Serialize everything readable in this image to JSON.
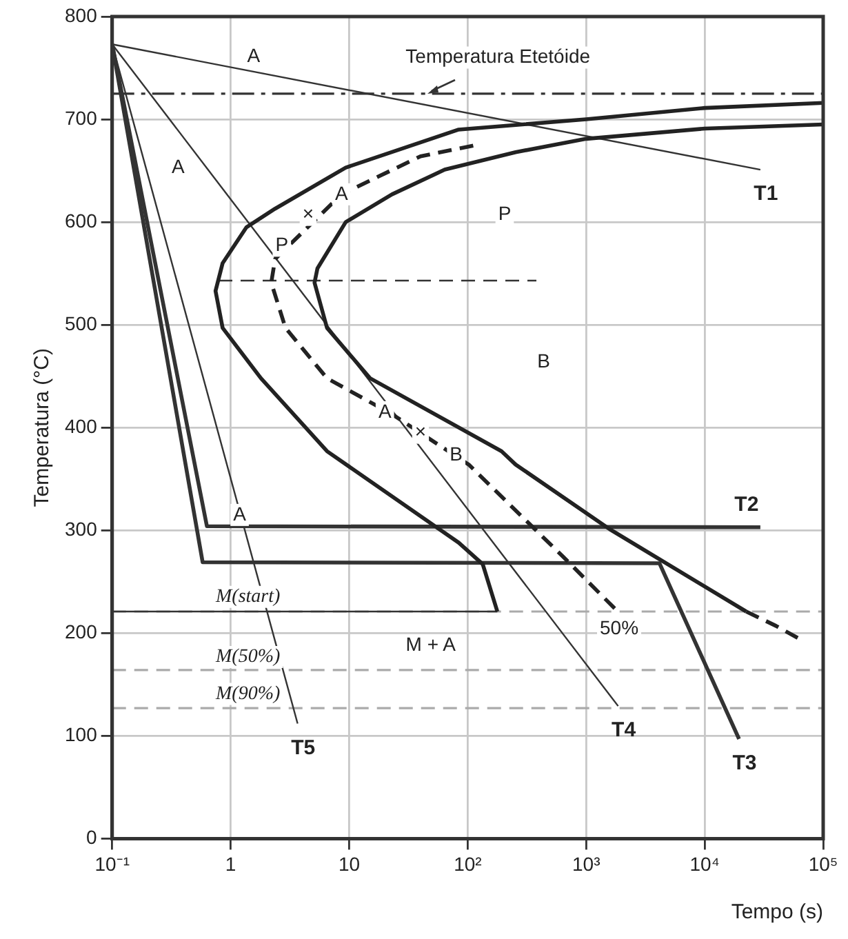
{
  "chart_data": {
    "type": "line",
    "xlabel": "Tempo (s)",
    "ylabel": "Temperatura (°C)",
    "log": "x",
    "xlim": [
      0.1,
      100000
    ],
    "ylim": [
      0,
      800
    ],
    "xticks": [
      {
        "value": 0.1,
        "label": "10⁻¹"
      },
      1,
      10,
      {
        "value": 100,
        "label": "10²"
      },
      {
        "value": 1000,
        "label": "10³"
      },
      {
        "value": 10000,
        "label": "10⁴"
      },
      {
        "value": 100000,
        "label": "10⁵"
      }
    ],
    "yticks": [
      0,
      100,
      200,
      300,
      400,
      500,
      600,
      700,
      800
    ],
    "grid": true,
    "legend": false,
    "marker": "none",
    "series": [
      {
        "color": "#222222",
        "line_style": "solid",
        "x": [
          178,
          134,
          84,
          6.5,
          1.8,
          0.855,
          0.745,
          0.855,
          1.36,
          2.37,
          9.35,
          84,
          1000,
          10000,
          100000
        ],
        "values": [
          221,
          267,
          288,
          377,
          448,
          497,
          533,
          560,
          595,
          613,
          653,
          690,
          700,
          711,
          716
        ]
      },
      {
        "color": "#222222",
        "line_style": "solid",
        "x": [
          22400,
          1585,
          254,
          193,
          15,
          6.5,
          5.1,
          5.4,
          9.35,
          23,
          64,
          254,
          1000,
          10000,
          100000
        ],
        "values": [
          221,
          301,
          364,
          377,
          448,
          497,
          541,
          555,
          600,
          627,
          651,
          668,
          681,
          691,
          695
        ]
      },
      {
        "color": "#222222",
        "line_style": "dashed",
        "x": [
          22400,
          40000,
          61600
        ],
        "values": [
          221,
          207,
          195
        ]
      },
      {
        "color": "#222222",
        "line_style": "dashed",
        "x": [
          1740,
          630,
          102,
          23,
          6.5,
          2.9,
          2.2,
          2.37,
          8.6,
          40,
          118
        ],
        "values": [
          224,
          275,
          364,
          413,
          448,
          497,
          541,
          564,
          627,
          664,
          675
        ]
      },
      {
        "color": "#333333",
        "line_style": "dashed",
        "x": [
          0.79,
          380
        ],
        "values": [
          543,
          543
        ]
      },
      {
        "color": "#333333",
        "line_style": "solid",
        "x": [
          0.1,
          178
        ],
        "values": [
          221,
          221
        ]
      },
      {
        "name": "T1",
        "color": "#333333",
        "line_style": "solid",
        "x": [
          0.1,
          29500
        ],
        "values": [
          773,
          651
        ]
      },
      {
        "name": "T2",
        "color": "#333333",
        "line_style": "solid",
        "x": [
          0.1,
          0.63,
          29500
        ],
        "values": [
          773,
          304,
          303
        ]
      },
      {
        "name": "T3",
        "color": "#333333",
        "line_style": "solid",
        "x": [
          0.1,
          0.58,
          4150,
          19500
        ],
        "values": [
          773,
          269,
          268,
          97
        ]
      },
      {
        "name": "T4",
        "color": "#333333",
        "line_style": "solid",
        "x": [
          0.1,
          1860
        ],
        "values": [
          773,
          129
        ]
      },
      {
        "name": "T5",
        "color": "#333333",
        "line_style": "solid",
        "x": [
          0.1,
          3.67
        ],
        "values": [
          773,
          112
        ]
      }
    ],
    "ref_lines": [
      {
        "axis": "y",
        "value": 725,
        "line_style": "dashed",
        "color": "#333333"
      },
      {
        "axis": "y",
        "value": 221,
        "line_style": "dashed",
        "color": "#aaaaaa"
      },
      {
        "axis": "y",
        "value": 164,
        "line_style": "dashed",
        "color": "#aaaaaa"
      },
      {
        "axis": "y",
        "value": 127,
        "line_style": "dashed",
        "color": "#aaaaaa"
      }
    ],
    "annotations": [
      "Temperatura Etetóide",
      "A",
      "A",
      "P",
      "B",
      "M + A",
      "50%",
      "M(start)",
      "M(50%)",
      "M(90%)",
      {
        "text": "P",
        "x": 2.7,
        "y": 577
      },
      {
        "text": "×",
        "x": 4.5,
        "y": 607
      },
      {
        "text": "A",
        "x": 8.6,
        "y": 627
      },
      {
        "text": "A",
        "x": 20,
        "y": 415
      },
      {
        "text": "×",
        "x": 40,
        "y": 395
      },
      {
        "text": "B",
        "x": 80,
        "y": 373
      },
      {
        "text": "A",
        "x": 1.19,
        "y": 315
      }
    ]
  }
}
